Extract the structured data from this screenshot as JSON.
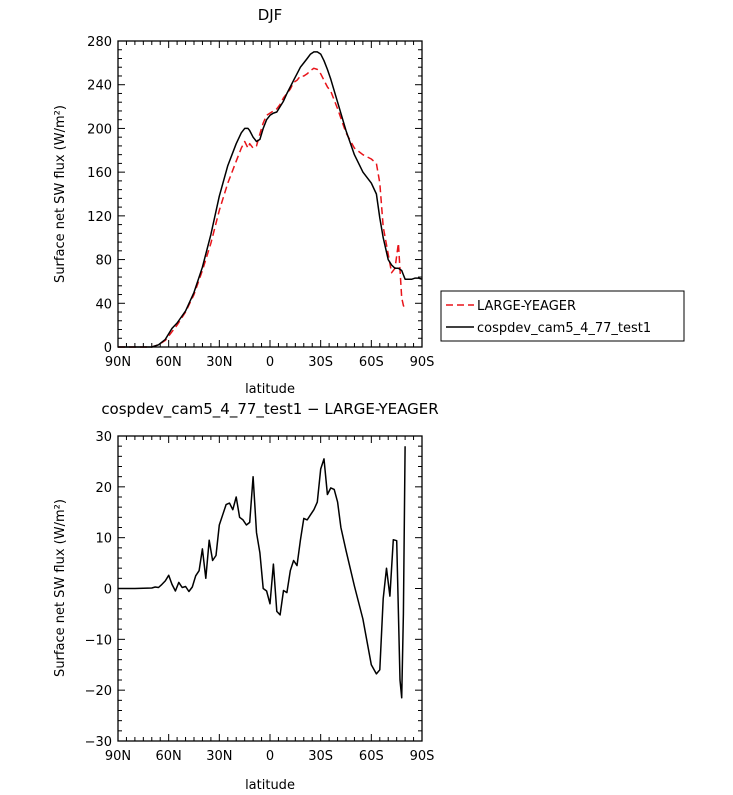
{
  "chart_data": [
    {
      "type": "line",
      "title": "DJF",
      "xlabel": "latitude",
      "ylabel": "Surface net SW flux (W/m²)",
      "xlim": [
        90,
        -90
      ],
      "ylim": [
        0,
        280
      ],
      "x_ticks": [
        90,
        60,
        30,
        0,
        -30,
        -60,
        -90
      ],
      "x_tick_labels": [
        "90N",
        "60N",
        "30N",
        "0",
        "30S",
        "60S",
        "90S"
      ],
      "y_ticks": [
        0,
        40,
        80,
        120,
        160,
        200,
        240,
        280
      ],
      "legend_position": "right",
      "series": [
        {
          "name": "LARGE-YEAGER",
          "color": "#e8141a",
          "dash": "dashed",
          "x": [
            90,
            80,
            70,
            66,
            62,
            58,
            55,
            50,
            45,
            40,
            35,
            30,
            25,
            20,
            17,
            15,
            13,
            12,
            10,
            8,
            6,
            4,
            2,
            0,
            -2,
            -4,
            -6,
            -8,
            -10,
            -12,
            -14,
            -16,
            -18,
            -20,
            -22,
            -24,
            -26,
            -28,
            -30,
            -32,
            -34,
            -36,
            -40,
            -45,
            -50,
            -55,
            -60,
            -63,
            -65,
            -67,
            -70,
            -72,
            -74,
            -76,
            -78,
            -79,
            -80
          ],
          "y": [
            0,
            0,
            0,
            2,
            6,
            14,
            20,
            32,
            48,
            70,
            95,
            125,
            150,
            170,
            182,
            188,
            182,
            186,
            182,
            184,
            195,
            205,
            212,
            214,
            216,
            218,
            222,
            228,
            232,
            236,
            242,
            244,
            248,
            248,
            250,
            253,
            255,
            254,
            250,
            244,
            238,
            234,
            218,
            196,
            182,
            176,
            172,
            168,
            150,
            110,
            85,
            68,
            72,
            95,
            45,
            38,
            35
          ]
        },
        {
          "name": "cospdev_cam5_4_77_test1",
          "color": "#000000",
          "dash": "solid",
          "x": [
            90,
            80,
            70,
            66,
            62,
            58,
            55,
            50,
            45,
            40,
            35,
            30,
            25,
            20,
            17,
            15,
            13,
            12,
            10,
            8,
            6,
            4,
            2,
            0,
            -2,
            -4,
            -6,
            -8,
            -10,
            -12,
            -14,
            -16,
            -18,
            -20,
            -22,
            -24,
            -26,
            -28,
            -30,
            -32,
            -34,
            -36,
            -40,
            -45,
            -50,
            -55,
            -60,
            -63,
            -65,
            -67,
            -70,
            -72,
            -74,
            -76,
            -78,
            -79,
            -80,
            -82,
            -84,
            -86,
            -88,
            -90
          ],
          "y": [
            0,
            0,
            0,
            2,
            7,
            17,
            22,
            33,
            50,
            73,
            103,
            138,
            166,
            186,
            196,
            200,
            200,
            198,
            192,
            188,
            190,
            200,
            208,
            212,
            214,
            215,
            220,
            225,
            232,
            238,
            244,
            250,
            256,
            260,
            264,
            268,
            270,
            270,
            268,
            262,
            254,
            245,
            224,
            198,
            176,
            160,
            150,
            140,
            118,
            100,
            80,
            75,
            72,
            72,
            70,
            66,
            62,
            62,
            62,
            63,
            63,
            62
          ]
        }
      ]
    },
    {
      "type": "line",
      "title": "cospdev_cam5_4_77_test1 − LARGE-YEAGER",
      "xlabel": "latitude",
      "ylabel": "Surface net SW flux (W/m²)",
      "xlim": [
        90,
        -90
      ],
      "ylim": [
        -30,
        30
      ],
      "x_ticks": [
        90,
        60,
        30,
        0,
        -30,
        -60,
        -90
      ],
      "x_tick_labels": [
        "90N",
        "60N",
        "30N",
        "0",
        "30S",
        "60S",
        "90S"
      ],
      "y_ticks": [
        -30,
        -20,
        -10,
        0,
        10,
        20,
        30
      ],
      "series": [
        {
          "color": "#000000",
          "dash": "solid",
          "x": [
            90,
            80,
            70,
            68,
            66,
            64,
            62,
            60,
            58,
            56,
            54,
            52,
            50,
            48,
            46,
            44,
            42,
            40,
            38,
            36,
            34,
            32,
            30,
            28,
            26,
            24,
            22,
            20,
            18,
            16,
            14,
            12,
            10,
            8,
            6,
            4,
            2,
            0,
            -2,
            -4,
            -6,
            -8,
            -10,
            -12,
            -14,
            -16,
            -18,
            -20,
            -22,
            -24,
            -26,
            -28,
            -30,
            -32,
            -34,
            -36,
            -38,
            -40,
            -42,
            -45,
            -50,
            -55,
            -60,
            -63,
            -65,
            -67,
            -69,
            -71,
            -73,
            -75,
            -77,
            -78,
            -79,
            -80
          ],
          "y": [
            0,
            0,
            0.1,
            0.3,
            0.2,
            0.8,
            1.5,
            2.6,
            0.8,
            -0.5,
            1.2,
            0.2,
            0.4,
            -0.6,
            0.3,
            2.5,
            3.5,
            7.8,
            2.0,
            9.5,
            5.5,
            6.5,
            12.5,
            14.5,
            16.5,
            16.8,
            15.5,
            18.0,
            14.0,
            13.5,
            12.5,
            13.0,
            22.0,
            11.0,
            7.0,
            0.0,
            -0.5,
            -3.0,
            4.8,
            -4.5,
            -5.2,
            -0.4,
            -0.8,
            3.5,
            5.5,
            4.5,
            9.5,
            13.8,
            13.5,
            14.5,
            15.5,
            17.0,
            23.5,
            25.5,
            18.5,
            19.8,
            19.5,
            17.0,
            12.0,
            7.5,
            0.5,
            -6.0,
            -15.0,
            -16.8,
            -16.0,
            -2.0,
            4.0,
            -1.5,
            9.6,
            9.4,
            -18.0,
            -21.5,
            -5.0,
            28.0
          ]
        }
      ]
    }
  ]
}
